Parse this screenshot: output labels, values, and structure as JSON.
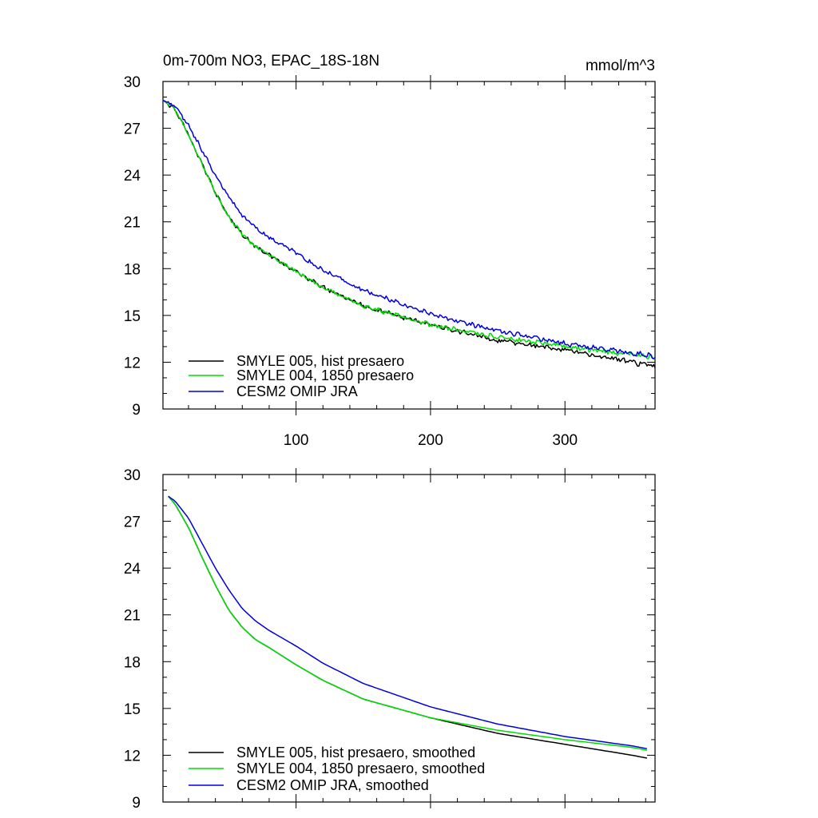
{
  "chart_data": [
    {
      "type": "line",
      "title": "0m-700m NO3, EPAC_18S-18N",
      "units": "mmol/m^3",
      "xlabel": "",
      "ylabel": "",
      "xlim": [
        1,
        367
      ],
      "ylim": [
        9,
        30
      ],
      "xticks": [
        100,
        200,
        300
      ],
      "yticks": [
        9,
        12,
        15,
        18,
        21,
        24,
        27,
        30
      ],
      "legend_position": "bottom-left",
      "x": [
        1,
        10,
        20,
        30,
        40,
        50,
        60,
        70,
        80,
        100,
        120,
        150,
        200,
        250,
        300,
        350,
        367
      ],
      "series": [
        {
          "name": "SMYLE 005, hist presaero",
          "color": "#000000",
          "values": [
            28.8,
            28.2,
            26.6,
            24.7,
            22.9,
            21.3,
            20.2,
            19.4,
            18.9,
            17.8,
            16.8,
            15.6,
            14.4,
            13.4,
            12.8,
            12.0,
            11.7
          ]
        },
        {
          "name": "SMYLE 004, 1850 presaero",
          "color": "#00dd00",
          "values": [
            28.8,
            28.2,
            26.6,
            24.7,
            22.9,
            21.3,
            20.2,
            19.4,
            18.9,
            17.8,
            16.8,
            15.6,
            14.4,
            13.6,
            13.0,
            12.5,
            12.3
          ]
        },
        {
          "name": "CESM2 OMIP JRA",
          "color": "#0000dd",
          "values": [
            28.8,
            28.4,
            27.2,
            25.6,
            24.0,
            22.6,
            21.4,
            20.6,
            20.0,
            19.0,
            17.9,
            16.6,
            15.1,
            14.0,
            13.2,
            12.6,
            12.4
          ]
        }
      ]
    },
    {
      "type": "line",
      "title": "",
      "xlabel": "",
      "ylabel": "",
      "xlim": [
        1,
        367
      ],
      "ylim": [
        9,
        30
      ],
      "xticks": [
        100,
        200,
        300
      ],
      "yticks": [
        9,
        12,
        15,
        18,
        21,
        24,
        27,
        30
      ],
      "legend_position": "bottom-left",
      "x": [
        5,
        10,
        20,
        30,
        40,
        50,
        60,
        70,
        80,
        100,
        120,
        150,
        200,
        250,
        300,
        350,
        362
      ],
      "series": [
        {
          "name": "SMYLE 005, hist presaero, smoothed",
          "color": "#000000",
          "values": [
            28.6,
            28.1,
            26.6,
            24.7,
            22.9,
            21.3,
            20.2,
            19.4,
            18.9,
            17.8,
            16.8,
            15.6,
            14.4,
            13.4,
            12.7,
            12.0,
            11.8
          ]
        },
        {
          "name": "SMYLE 004, 1850 presaero, smoothed",
          "color": "#00dd00",
          "values": [
            28.6,
            28.1,
            26.6,
            24.7,
            22.9,
            21.3,
            20.2,
            19.4,
            18.9,
            17.8,
            16.8,
            15.6,
            14.4,
            13.6,
            13.0,
            12.5,
            12.3
          ]
        },
        {
          "name": "CESM2 OMIP JRA, smoothed",
          "color": "#0000dd",
          "values": [
            28.6,
            28.3,
            27.2,
            25.6,
            24.0,
            22.6,
            21.4,
            20.6,
            20.0,
            19.0,
            17.9,
            16.6,
            15.1,
            14.0,
            13.2,
            12.6,
            12.4
          ]
        }
      ]
    }
  ]
}
